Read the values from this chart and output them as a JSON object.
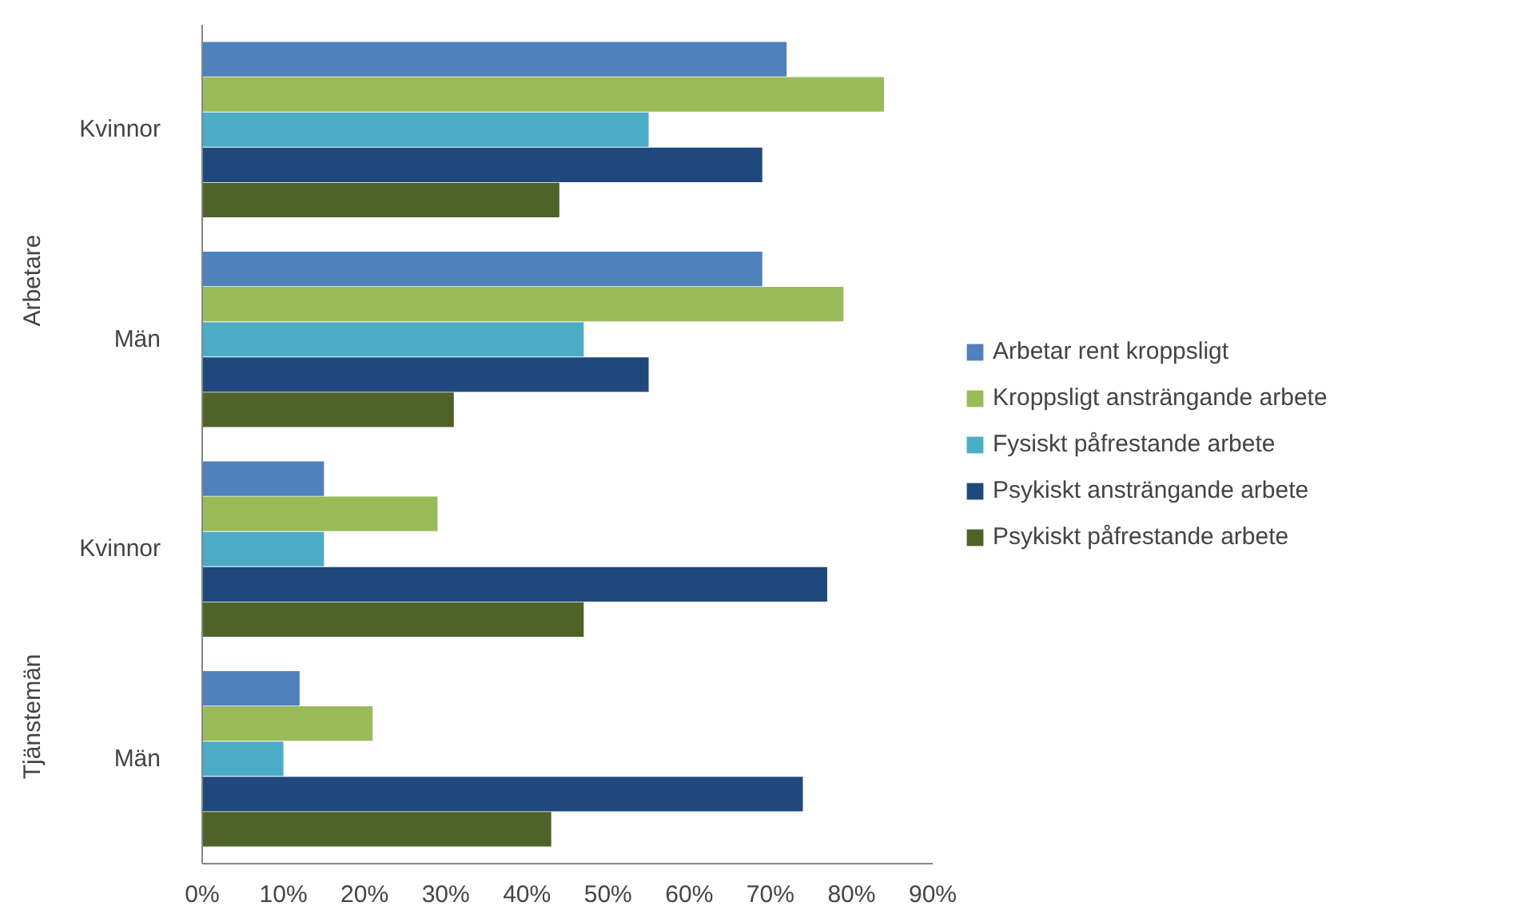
{
  "chart_data": {
    "type": "bar",
    "orientation": "horizontal",
    "categories": [
      "Kvinnor",
      "Män",
      "Kvinnor",
      "Män"
    ],
    "annotations": [
      "Arbetare",
      "Tjänstemän"
    ],
    "series": [
      {
        "name": "Arbetar rent kroppsligt",
        "color": "#4f81bd",
        "values": [
          72,
          69,
          15,
          12
        ]
      },
      {
        "name": "Kroppsligt ansträngande arbete",
        "color": "#9bbb59",
        "values": [
          84,
          79,
          29,
          21
        ]
      },
      {
        "name": "Fysiskt påfrestande arbete",
        "color": "#4bacc6",
        "values": [
          55,
          47,
          15,
          10
        ]
      },
      {
        "name": "Psykiskt ansträngande arbete",
        "color": "#1f497d",
        "values": [
          69,
          55,
          77,
          74
        ]
      },
      {
        "name": "Psykiskt påfrestande arbete",
        "color": "#4f6228",
        "values": [
          44,
          31,
          47,
          43
        ]
      }
    ],
    "xlim": [
      0,
      90
    ],
    "xticks": [
      {
        "value": 0,
        "label": "0%"
      },
      {
        "value": 10,
        "label": "10%"
      },
      {
        "value": 20,
        "label": "20%"
      },
      {
        "value": 30,
        "label": "30%"
      },
      {
        "value": 40,
        "label": "40%"
      },
      {
        "value": 50,
        "label": "50%"
      },
      {
        "value": 60,
        "label": "60%"
      },
      {
        "value": 70,
        "label": "70%"
      },
      {
        "value": 80,
        "label": "80%"
      },
      {
        "value": 90,
        "label": "90%"
      }
    ],
    "grid": false,
    "legend": "right"
  }
}
